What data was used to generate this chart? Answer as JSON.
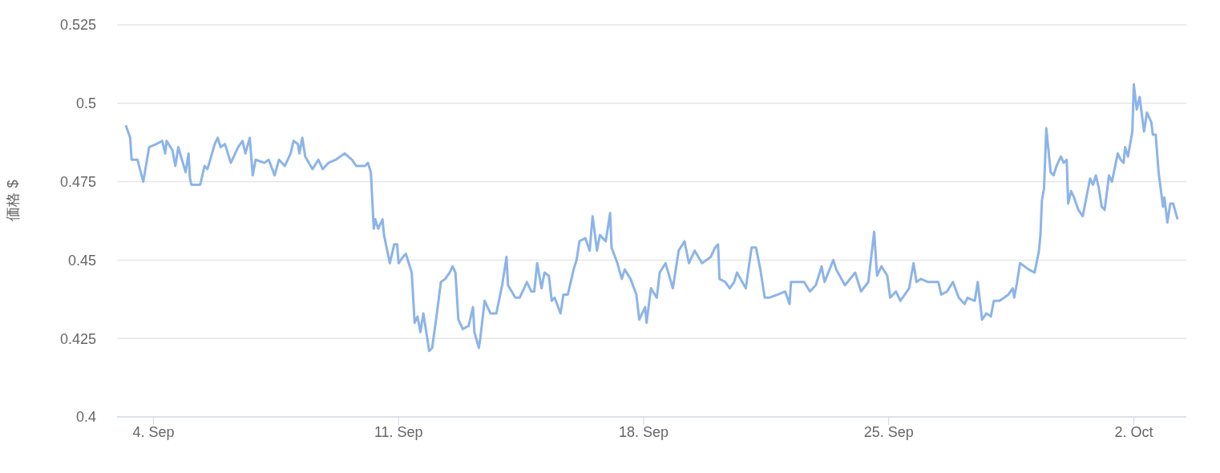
{
  "chart_data": {
    "type": "line",
    "ylabel": "価格 $",
    "color": "#8cb4e8",
    "grid": "y",
    "xlim": [
      "--09-02T23:00",
      "--10-03T12:00"
    ],
    "xticks": [
      {
        "value": "--09-04",
        "label": "4. Sep"
      },
      {
        "value": "--09-11",
        "label": "11. Sep"
      },
      {
        "value": "--09-18",
        "label": "18. Sep"
      },
      {
        "value": "--09-25",
        "label": "25. Sep"
      },
      {
        "value": "--10-02",
        "label": "2. Oct"
      }
    ],
    "ylim": [
      0.4,
      0.525
    ],
    "yticks": [
      0.4,
      0.425,
      0.45,
      0.475,
      0.5,
      0.525
    ],
    "x": [
      "--09-03T05:00",
      "--09-03T08:00",
      "--09-03T09:00",
      "--09-03T13:00",
      "--09-03T17:00",
      "--09-03T21:00",
      "--09-04T02:00",
      "--09-04T06:00",
      "--09-04T08:00",
      "--09-04T09:00",
      "--09-04T13:00",
      "--09-04T15:00",
      "--09-04T17:00",
      "--09-04T22:00",
      "--09-05T00:00",
      "--09-05T01:00",
      "--09-05T02:00",
      "--09-05T08:00",
      "--09-05T11:00",
      "--09-05T13:00",
      "--09-05T18:00",
      "--09-05T20:00",
      "--09-05T22:00",
      "--09-06T01:00",
      "--09-06T05:00",
      "--09-06T10:00",
      "--09-06T13:00",
      "--09-06T15:00",
      "--09-06T18:00",
      "--09-06T20:00",
      "--09-06T22:00",
      "--09-07T04:00",
      "--09-07T07:00",
      "--09-07T11:00",
      "--09-07T14:00",
      "--09-07T18:00",
      "--09-07T22:00",
      "--09-08T00:00",
      "--09-08T03:00",
      "--09-08T04:00",
      "--09-08T06:00",
      "--09-08T08:00",
      "--09-08T13:00",
      "--09-08T17:00",
      "--09-08T20:00",
      "--09-09T00:00",
      "--09-09T05:00",
      "--09-09T11:00",
      "--09-09T16:00",
      "--09-09T19:00",
      "--09-10T01:00",
      "--09-10T03:00",
      "--09-10T05:00",
      "--09-10T06:00",
      "--09-10T07:00",
      "--09-10T08:00",
      "--09-10T10:00",
      "--09-10T13:00",
      "--09-10T14:00",
      "--09-10T18:00",
      "--09-10T21:00",
      "--09-10T23:00",
      "--09-11T00:00",
      "--09-11T03:00",
      "--09-11T05:00",
      "--09-11T09:00",
      "--09-11T11:00",
      "--09-11T13:00",
      "--09-11T15:00",
      "--09-11T17:00",
      "--09-11T19:00",
      "--09-11T21:00",
      "--09-11T23:00",
      "--09-12T02:00",
      "--09-12T05:00",
      "--09-12T08:00",
      "--09-12T11:00",
      "--09-12T13:00",
      "--09-12T15:00",
      "--09-12T17:00",
      "--09-12T20:00",
      "--09-13T00:00",
      "--09-13T03:00",
      "--09-13T04:00",
      "--09-13T07:00",
      "--09-13T08:00",
      "--09-13T11:00",
      "--09-13T15:00",
      "--09-13T19:00",
      "--09-13T23:00",
      "--09-14T02:00",
      "--09-14T03:00",
      "--09-14T08:00",
      "--09-14T11:00",
      "--09-14T16:00",
      "--09-14T19:00",
      "--09-14T21:00",
      "--09-14T23:00",
      "--09-15T02:00",
      "--09-15T04:00",
      "--09-15T07:00",
      "--09-15T09:00",
      "--09-15T11:00",
      "--09-15T15:00",
      "--09-15T17:00",
      "--09-15T20:00",
      "--09-16T00:00",
      "--09-16T02:00",
      "--09-16T04:00",
      "--09-16T08:00",
      "--09-16T11:00",
      "--09-16T13:00",
      "--09-16T16:00",
      "--09-16T18:00",
      "--09-16T22:00",
      "--09-17T01:00",
      "--09-17T02:00",
      "--09-17T06:00",
      "--09-17T09:00",
      "--09-17T11:00",
      "--09-17T15:00",
      "--09-17T19:00",
      "--09-17T21:00",
      "--09-18T01:00",
      "--09-18T02:00",
      "--09-18T05:00",
      "--09-18T09:00",
      "--09-18T11:00",
      "--09-18T15:00",
      "--09-18T20:00",
      "--09-19T00:00",
      "--09-19T04:00",
      "--09-19T07:00",
      "--09-19T11:00",
      "--09-19T16:00",
      "--09-19T22:00",
      "--09-20T01:00",
      "--09-20T03:00",
      "--09-20T04:00",
      "--09-20T08:00",
      "--09-20T11:00",
      "--09-20T14:00",
      "--09-20T16:00",
      "--09-20T22:00",
      "--09-21T02:00",
      "--09-21T05:00",
      "--09-21T08:00",
      "--09-21T11:00",
      "--09-21T14:00",
      "--09-21T20:00",
      "--09-22T01:00",
      "--09-22T04:00",
      "--09-22T05:00",
      "--09-22T10:00",
      "--09-22T14:00",
      "--09-22T18:00",
      "--09-22T22:00",
      "--09-23T02:00",
      "--09-23T04:00",
      "--09-23T10:00",
      "--09-23T12:00",
      "--09-23T18:00",
      "--09-24T01:00",
      "--09-24T05:00",
      "--09-24T10:00",
      "--09-24T14:00",
      "--09-24T16:00",
      "--09-24T19:00",
      "--09-24T23:00",
      "--09-25T01:00",
      "--09-25T05:00",
      "--09-25T08:00",
      "--09-25T14:00",
      "--09-25T17:00",
      "--09-25T19:00",
      "--09-25T22:00",
      "--09-26T03:00",
      "--09-26T10:00",
      "--09-26T12:00",
      "--09-26T16:00",
      "--09-26T20:00",
      "--09-27T00:00",
      "--09-27T04:00",
      "--09-27T06:00",
      "--09-27T11:00",
      "--09-27T13:00",
      "--09-27T16:00",
      "--09-27T19:00",
      "--09-27T22:00",
      "--09-28T00:00",
      "--09-28T04:00",
      "--09-28T10:00",
      "--09-28T13:00",
      "--09-28T14:00",
      "--09-28T16:00",
      "--09-28T18:00",
      "--09-29T00:00",
      "--09-29T04:00",
      "--09-29T07:00",
      "--09-29T08:00",
      "--09-29T09:00",
      "--09-29T10:30",
      "--09-29T12:00",
      "--09-29T15:00",
      "--09-29T17:00",
      "--09-29T19:00",
      "--09-29T22:00",
      "--09-30T00:00",
      "--09-30T02:00",
      "--09-30T03:00",
      "--09-30T05:00",
      "--09-30T07:00",
      "--09-30T10:00",
      "--09-30T13:00",
      "--09-30T18:00",
      "--09-30T20:00",
      "--09-30T22:00",
      "--10-01T00:00",
      "--10-01T02:00",
      "--10-01T04:00",
      "--10-01T07:00",
      "--10-01T09:00",
      "--10-01T13:00",
      "--10-01T15:00",
      "--10-01T17:00",
      "--10-01T18:00",
      "--10-01T20:00",
      "--10-01T23:00",
      "--10-02T00:00",
      "--10-02T02:00",
      "--10-02T04:00",
      "--10-02T07:00",
      "--10-02T09:00",
      "--10-02T12:00",
      "--10-02T13:00",
      "--10-02T15:00",
      "--10-02T17:00",
      "--10-02T20:00",
      "--10-02T21:00",
      "--10-02T23:00",
      "--10-03T01:00",
      "--10-03T03:00",
      "--10-03T06:00"
    ],
    "values": [
      0.493,
      0.489,
      0.482,
      0.482,
      0.475,
      0.486,
      0.487,
      0.488,
      0.484,
      0.488,
      0.485,
      0.48,
      0.486,
      0.478,
      0.484,
      0.476,
      0.474,
      0.474,
      0.48,
      0.479,
      0.487,
      0.489,
      0.486,
      0.487,
      0.481,
      0.486,
      0.488,
      0.484,
      0.489,
      0.477,
      0.482,
      0.481,
      0.482,
      0.477,
      0.482,
      0.48,
      0.484,
      0.488,
      0.487,
      0.484,
      0.489,
      0.483,
      0.479,
      0.482,
      0.479,
      0.481,
      0.482,
      0.484,
      0.482,
      0.48,
      0.48,
      0.481,
      0.478,
      0.469,
      0.46,
      0.463,
      0.46,
      0.463,
      0.458,
      0.449,
      0.455,
      0.455,
      0.449,
      0.451,
      0.452,
      0.446,
      0.43,
      0.432,
      0.427,
      0.433,
      0.427,
      0.421,
      0.422,
      0.432,
      0.443,
      0.444,
      0.446,
      0.448,
      0.446,
      0.431,
      0.428,
      0.429,
      0.435,
      0.427,
      0.422,
      0.425,
      0.437,
      0.433,
      0.433,
      0.442,
      0.451,
      0.442,
      0.438,
      0.438,
      0.443,
      0.44,
      0.44,
      0.449,
      0.441,
      0.446,
      0.445,
      0.437,
      0.438,
      0.433,
      0.439,
      0.439,
      0.447,
      0.45,
      0.456,
      0.457,
      0.453,
      0.464,
      0.453,
      0.458,
      0.456,
      0.465,
      0.454,
      0.449,
      0.444,
      0.447,
      0.444,
      0.439,
      0.431,
      0.435,
      0.43,
      0.441,
      0.438,
      0.446,
      0.449,
      0.441,
      0.453,
      0.456,
      0.449,
      0.453,
      0.449,
      0.451,
      0.454,
      0.455,
      0.444,
      0.443,
      0.441,
      0.443,
      0.446,
      0.441,
      0.454,
      0.454,
      0.447,
      0.438,
      0.438,
      0.439,
      0.44,
      0.436,
      0.443,
      0.443,
      0.443,
      0.44,
      0.442,
      0.448,
      0.443,
      0.45,
      0.447,
      0.442,
      0.446,
      0.44,
      0.443,
      0.459,
      0.445,
      0.448,
      0.445,
      0.438,
      0.44,
      0.437,
      0.441,
      0.449,
      0.443,
      0.444,
      0.443,
      0.443,
      0.439,
      0.44,
      0.443,
      0.438,
      0.436,
      0.438,
      0.437,
      0.443,
      0.431,
      0.433,
      0.432,
      0.437,
      0.437,
      0.439,
      0.441,
      0.438,
      0.443,
      0.449,
      0.447,
      0.446,
      0.453,
      0.458,
      0.469,
      0.473,
      0.492,
      0.478,
      0.477,
      0.48,
      0.483,
      0.481,
      0.482,
      0.468,
      0.472,
      0.47,
      0.466,
      0.464,
      0.476,
      0.474,
      0.477,
      0.473,
      0.467,
      0.466,
      0.477,
      0.475,
      0.484,
      0.482,
      0.481,
      0.486,
      0.483,
      0.491,
      0.506,
      0.498,
      0.502,
      0.491,
      0.497,
      0.494,
      0.49,
      0.49,
      0.478,
      0.467,
      0.47,
      0.462,
      0.468,
      0.468,
      0.463
    ]
  }
}
